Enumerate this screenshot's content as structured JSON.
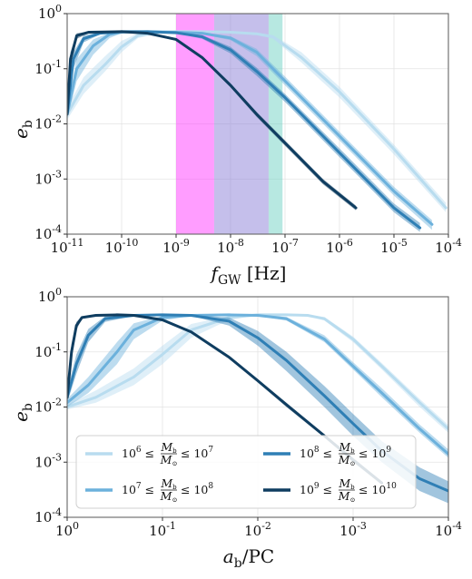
{
  "colors": {
    "s1": "#b8dcef",
    "s2": "#6cb1dc",
    "s3": "#2f7fb5",
    "s4": "#0f3d60",
    "band_pink": "#ff3cff",
    "band_purple": "#8b7fd8",
    "band_teal": "#6fd1c4"
  },
  "chart_data": [
    {
      "type": "line",
      "xlabel": "f_GW [Hz]",
      "xlabel_main": "f",
      "xlabel_sub": "GW",
      "xlabel_unit": "[Hz]",
      "ylabel": "e_b",
      "ylabel_main": "e",
      "ylabel_sub": "b",
      "xscale": "log",
      "yscale": "log",
      "xlim": [
        1e-11,
        0.0001
      ],
      "ylim": [
        0.0001,
        1
      ],
      "x_ticks": [
        {
          "base": "10",
          "exp": "-11"
        },
        {
          "base": "10",
          "exp": "-10"
        },
        {
          "base": "10",
          "exp": "-9"
        },
        {
          "base": "10",
          "exp": "-8"
        },
        {
          "base": "10",
          "exp": "-7"
        },
        {
          "base": "10",
          "exp": "-6"
        },
        {
          "base": "10",
          "exp": "-5"
        },
        {
          "base": "10",
          "exp": "-4"
        }
      ],
      "y_ticks": [
        {
          "base": "10",
          "exp": "0"
        },
        {
          "base": "10",
          "exp": "-1"
        },
        {
          "base": "10",
          "exp": "-2"
        },
        {
          "base": "10",
          "exp": "-3"
        },
        {
          "base": "10",
          "exp": "-4"
        }
      ],
      "bands": [
        {
          "x0": 1e-09,
          "x1": 5e-09,
          "color_key": "band_pink"
        },
        {
          "x0": 5e-09,
          "x1": 5e-08,
          "color_key": "band_purple"
        },
        {
          "x0": 5e-08,
          "x1": 9e-08,
          "color_key": "band_teal"
        }
      ],
      "series": [
        {
          "color_key": "s1",
          "x": [
            1e-11,
            2e-11,
            5e-11,
            1e-10,
            2e-10,
            5e-10,
            1e-09,
            3e-09,
            1e-08,
            3e-08,
            6e-08,
            2e-07,
            1e-06,
            1e-05,
            9e-05
          ],
          "y": [
            0.015,
            0.05,
            0.12,
            0.25,
            0.4,
            0.46,
            0.47,
            0.47,
            0.46,
            0.43,
            0.38,
            0.16,
            0.038,
            0.0035,
            0.0003
          ],
          "y_lo": [
            0.012,
            0.035,
            0.09,
            0.2,
            0.36,
            0.45,
            0.46,
            0.46,
            0.45,
            0.41,
            0.35,
            0.13,
            0.03,
            0.0028,
            0.00025
          ],
          "y_hi": [
            0.02,
            0.07,
            0.17,
            0.32,
            0.44,
            0.47,
            0.48,
            0.48,
            0.47,
            0.45,
            0.41,
            0.2,
            0.047,
            0.0042,
            0.00037
          ]
        },
        {
          "color_key": "s2",
          "x": [
            1e-11,
            1.5e-11,
            3e-11,
            6e-11,
            1e-10,
            3e-10,
            1e-09,
            3e-09,
            1e-08,
            3e-08,
            1e-07,
            1e-06,
            1e-05,
            5e-05
          ],
          "y": [
            0.015,
            0.1,
            0.26,
            0.42,
            0.46,
            0.47,
            0.46,
            0.44,
            0.36,
            0.2,
            0.06,
            0.006,
            0.0006,
            0.00015
          ],
          "y_lo": [
            0.012,
            0.06,
            0.18,
            0.36,
            0.44,
            0.46,
            0.45,
            0.42,
            0.33,
            0.17,
            0.05,
            0.005,
            0.0005,
            0.00012
          ],
          "y_hi": [
            0.02,
            0.15,
            0.34,
            0.45,
            0.47,
            0.48,
            0.47,
            0.46,
            0.39,
            0.23,
            0.072,
            0.0072,
            0.00072,
            0.00018
          ]
        },
        {
          "color_key": "s3",
          "x": [
            1e-11,
            1.3e-11,
            2e-11,
            4e-11,
            1e-10,
            3e-10,
            1e-09,
            3e-09,
            1e-08,
            3e-08,
            1e-07,
            1e-06,
            1e-05,
            3e-05
          ],
          "y": [
            0.015,
            0.15,
            0.35,
            0.44,
            0.47,
            0.47,
            0.45,
            0.38,
            0.22,
            0.09,
            0.03,
            0.003,
            0.0003,
            0.00013
          ],
          "y_lo": [
            0.012,
            0.1,
            0.3,
            0.42,
            0.46,
            0.46,
            0.44,
            0.35,
            0.19,
            0.075,
            0.025,
            0.0025,
            0.00025,
            0.00011
          ],
          "y_hi": [
            0.02,
            0.2,
            0.4,
            0.46,
            0.48,
            0.48,
            0.46,
            0.41,
            0.25,
            0.105,
            0.035,
            0.0036,
            0.00036,
            0.00016
          ]
        },
        {
          "color_key": "s4",
          "x": [
            1e-11,
            1.15e-11,
            1.5e-11,
            2.5e-11,
            1e-10,
            3e-10,
            1e-09,
            3e-09,
            1e-08,
            3e-08,
            1e-07,
            5e-07,
            2e-06
          ],
          "y": [
            0.015,
            0.15,
            0.4,
            0.46,
            0.47,
            0.44,
            0.34,
            0.16,
            0.05,
            0.015,
            0.0045,
            0.0009,
            0.0003
          ],
          "y_lo": [
            0.012,
            0.1,
            0.35,
            0.44,
            0.46,
            0.43,
            0.32,
            0.15,
            0.046,
            0.0135,
            0.004,
            0.0008,
            0.00027
          ],
          "y_hi": [
            0.02,
            0.2,
            0.44,
            0.47,
            0.48,
            0.45,
            0.36,
            0.17,
            0.054,
            0.0165,
            0.005,
            0.001,
            0.00033
          ]
        }
      ]
    },
    {
      "type": "line",
      "xlabel": "a_b/PC",
      "xlabel_main": "a",
      "xlabel_sub": "b",
      "xlabel_unit": "/PC",
      "ylabel": "e_b",
      "ylabel_main": "e",
      "ylabel_sub": "b",
      "xscale": "log",
      "xreversed": true,
      "yscale": "log",
      "xlim": [
        1,
        0.0001
      ],
      "ylim": [
        0.0001,
        1
      ],
      "x_ticks": [
        {
          "base": "10",
          "exp": "0"
        },
        {
          "base": "10",
          "exp": "-1"
        },
        {
          "base": "10",
          "exp": "-2"
        },
        {
          "base": "10",
          "exp": "-3"
        },
        {
          "base": "10",
          "exp": "-4"
        }
      ],
      "y_ticks": [
        {
          "base": "10",
          "exp": "0"
        },
        {
          "base": "10",
          "exp": "-1"
        },
        {
          "base": "10",
          "exp": "-2"
        },
        {
          "base": "10",
          "exp": "-3"
        },
        {
          "base": "10",
          "exp": "-4"
        }
      ],
      "legend": {
        "placement": "lower-left",
        "entries": [
          {
            "color_key": "s1",
            "lo_exp": "6",
            "hi_exp": "7"
          },
          {
            "color_key": "s3",
            "lo_exp": "8",
            "hi_exp": "9"
          },
          {
            "color_key": "s2",
            "lo_exp": "7",
            "hi_exp": "8"
          },
          {
            "color_key": "s4",
            "lo_exp": "9",
            "hi_exp": "10"
          }
        ],
        "base": "10",
        "frac_num": "M",
        "frac_num_sub": "b",
        "frac_den": "M",
        "frac_den_sub": "⊙",
        "leq": "≤"
      },
      "series": [
        {
          "color_key": "s1",
          "x": [
            1,
            0.5,
            0.2,
            0.1,
            0.05,
            0.02,
            0.01,
            0.005,
            0.003,
            0.002,
            0.001,
            0.0005,
            0.0002,
            0.0001
          ],
          "y": [
            0.01,
            0.015,
            0.035,
            0.09,
            0.25,
            0.42,
            0.47,
            0.47,
            0.46,
            0.4,
            0.17,
            0.055,
            0.012,
            0.004
          ],
          "y_lo": [
            0.009,
            0.012,
            0.025,
            0.06,
            0.18,
            0.38,
            0.46,
            0.46,
            0.45,
            0.37,
            0.15,
            0.048,
            0.01,
            0.0034
          ],
          "y_hi": [
            0.011,
            0.02,
            0.05,
            0.13,
            0.32,
            0.45,
            0.48,
            0.48,
            0.47,
            0.43,
            0.19,
            0.063,
            0.014,
            0.0047
          ]
        },
        {
          "color_key": "s2",
          "x": [
            1,
            0.6,
            0.3,
            0.2,
            0.1,
            0.05,
            0.02,
            0.01,
            0.005,
            0.002,
            0.001,
            0.0005,
            0.0002,
            0.0001
          ],
          "y": [
            0.012,
            0.025,
            0.1,
            0.25,
            0.42,
            0.46,
            0.47,
            0.46,
            0.4,
            0.17,
            0.055,
            0.018,
            0.004,
            0.0014
          ],
          "y_lo": [
            0.01,
            0.018,
            0.06,
            0.17,
            0.37,
            0.45,
            0.46,
            0.45,
            0.37,
            0.15,
            0.048,
            0.015,
            0.0034,
            0.0012
          ],
          "y_hi": [
            0.014,
            0.035,
            0.15,
            0.33,
            0.45,
            0.47,
            0.48,
            0.47,
            0.43,
            0.2,
            0.065,
            0.022,
            0.0048,
            0.0017
          ]
        },
        {
          "color_key": "s3",
          "x": [
            1,
            0.8,
            0.6,
            0.4,
            0.2,
            0.1,
            0.05,
            0.02,
            0.01,
            0.005,
            0.002,
            0.001,
            0.0005,
            0.0002,
            0.0001
          ],
          "y": [
            0.015,
            0.06,
            0.2,
            0.4,
            0.46,
            0.47,
            0.46,
            0.36,
            0.18,
            0.07,
            0.016,
            0.005,
            0.0016,
            0.0005,
            0.0003
          ],
          "y_lo": [
            0.012,
            0.04,
            0.15,
            0.35,
            0.45,
            0.46,
            0.45,
            0.3,
            0.13,
            0.045,
            0.01,
            0.003,
            0.001,
            0.0003,
            0.00018
          ],
          "y_hi": [
            0.02,
            0.09,
            0.26,
            0.44,
            0.47,
            0.48,
            0.47,
            0.42,
            0.24,
            0.1,
            0.024,
            0.0075,
            0.0024,
            0.0008,
            0.00045
          ]
        },
        {
          "color_key": "s4",
          "x": [
            1,
            0.9,
            0.8,
            0.7,
            0.5,
            0.3,
            0.2,
            0.1,
            0.05,
            0.02,
            0.01,
            0.005,
            0.002,
            0.001,
            0.0005
          ],
          "y": [
            0.015,
            0.1,
            0.3,
            0.42,
            0.46,
            0.47,
            0.46,
            0.38,
            0.23,
            0.08,
            0.03,
            0.011,
            0.003,
            0.0011,
            0.00042
          ],
          "y_lo": [
            0.012,
            0.07,
            0.25,
            0.4,
            0.45,
            0.46,
            0.45,
            0.36,
            0.22,
            0.075,
            0.028,
            0.01,
            0.0028,
            0.001,
            0.00039
          ],
          "y_hi": [
            0.02,
            0.14,
            0.35,
            0.44,
            0.47,
            0.48,
            0.47,
            0.4,
            0.24,
            0.085,
            0.032,
            0.012,
            0.0032,
            0.0012,
            0.00045
          ]
        }
      ]
    }
  ]
}
